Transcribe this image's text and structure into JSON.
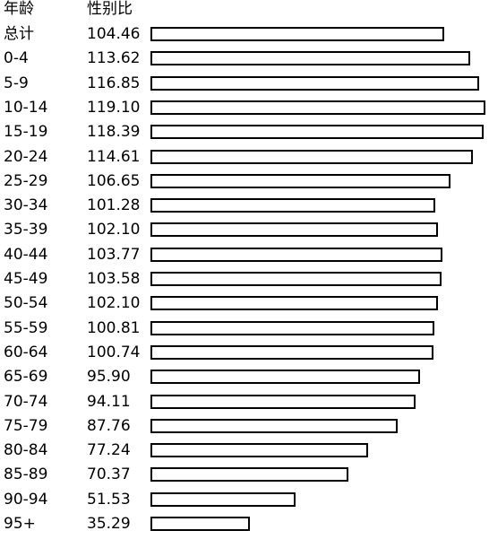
{
  "chart_data": {
    "type": "bar",
    "orientation": "horizontal",
    "headers": {
      "category": "年龄",
      "value": "性别比"
    },
    "categories": [
      "总计",
      "0-4",
      "5-9",
      "10-14",
      "15-19",
      "20-24",
      "25-29",
      "30-34",
      "35-39",
      "40-44",
      "45-49",
      "50-54",
      "55-59",
      "60-64",
      "65-69",
      "70-74",
      "75-79",
      "80-84",
      "85-89",
      "90-94",
      "95+"
    ],
    "value_labels": [
      "104.46",
      "113.62",
      "116.85",
      "119.10",
      "118.39",
      "114.61",
      "106.65",
      "101.28",
      "102.10",
      "103.77",
      "103.58",
      "102.10",
      "100.81",
      "100.74",
      "95.90",
      "94.11",
      "87.76",
      "77.24",
      "70.37",
      "51.53",
      "35.29"
    ],
    "values": [
      104.46,
      113.62,
      116.85,
      119.1,
      118.39,
      114.61,
      106.65,
      101.28,
      102.1,
      103.77,
      103.58,
      102.1,
      100.81,
      100.74,
      95.9,
      94.11,
      87.76,
      77.24,
      70.37,
      51.53,
      35.29
    ],
    "xlim": [
      0,
      119.1
    ],
    "grid": false,
    "legend": "none",
    "bar_fill": "#ffffff",
    "bar_stroke": "#000000"
  }
}
